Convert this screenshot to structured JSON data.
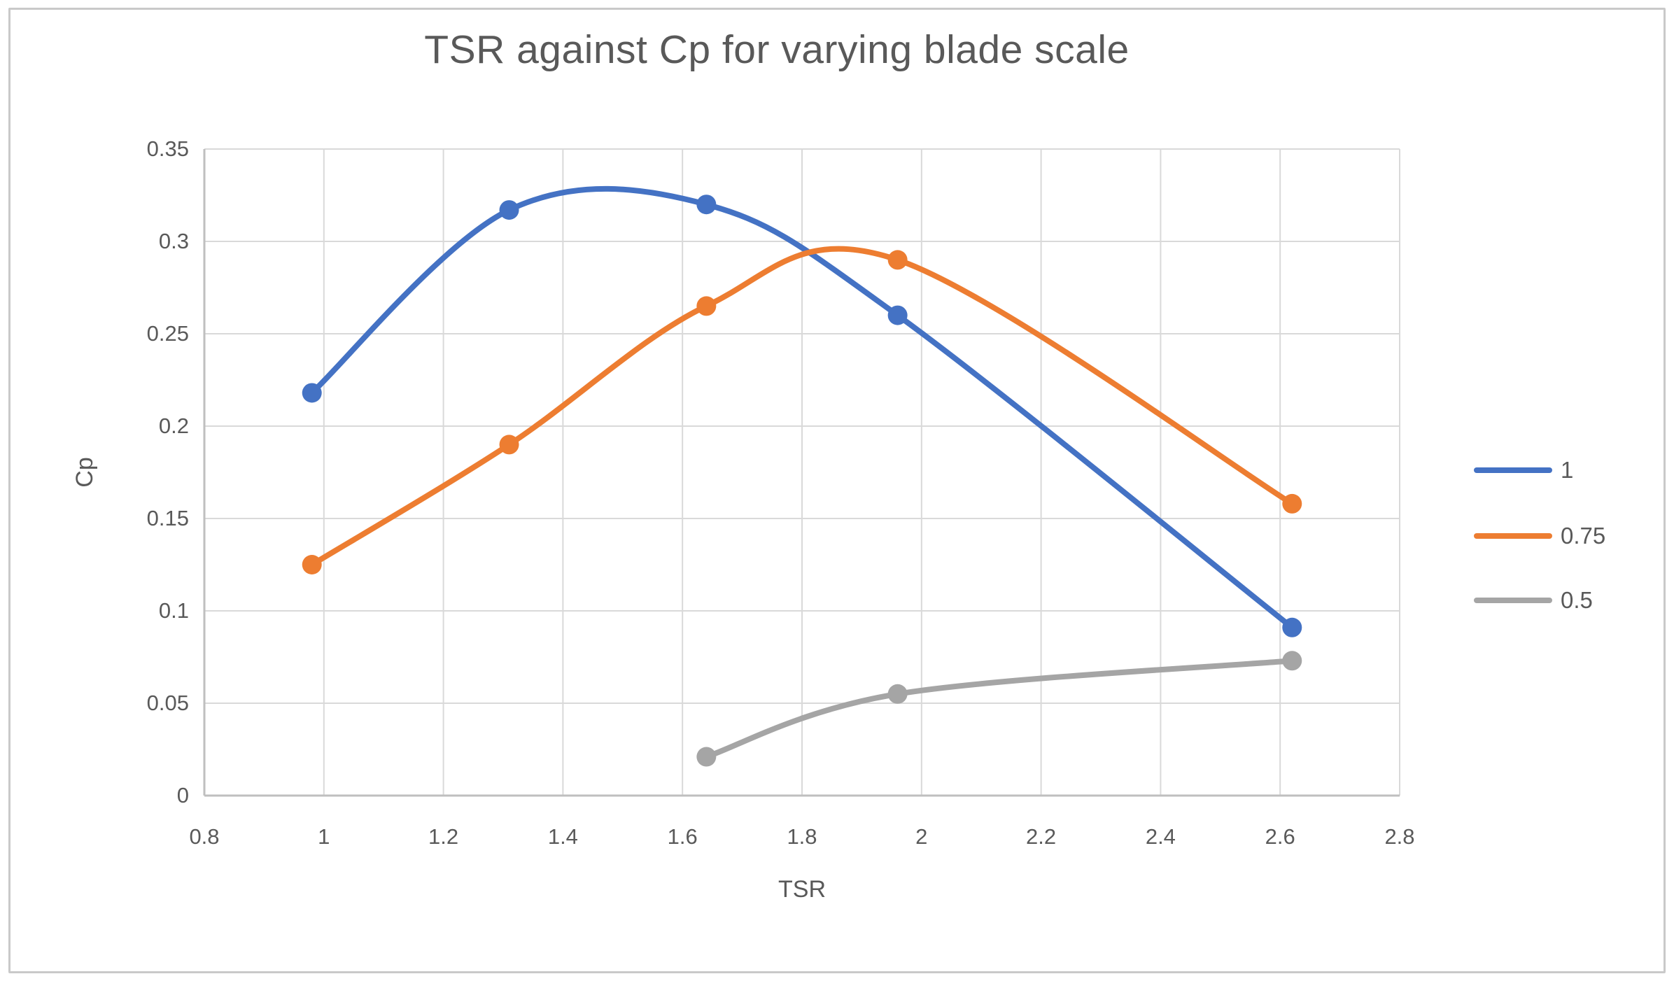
{
  "chart_data": {
    "type": "line",
    "title": "TSR against Cp for varying blade scale",
    "xlabel": "TSR",
    "ylabel": "Cp",
    "xlim": [
      0.8,
      2.8
    ],
    "ylim": [
      0,
      0.35
    ],
    "x_tick_step": 0.2,
    "y_tick_step": 0.05,
    "x_ticks": [
      "0.8",
      "1",
      "1.2",
      "1.4",
      "1.6",
      "1.8",
      "2",
      "2.2",
      "2.4",
      "2.6",
      "2.8"
    ],
    "y_ticks": [
      "0",
      "0.05",
      "0.1",
      "0.15",
      "0.2",
      "0.25",
      "0.3",
      "0.35"
    ],
    "grid": true,
    "smooth": true,
    "markers": true,
    "legend_position": "right",
    "series": [
      {
        "name": "1",
        "color": "#4472C4",
        "x": [
          0.98,
          1.31,
          1.64,
          1.96,
          2.62
        ],
        "y": [
          0.218,
          0.317,
          0.32,
          0.26,
          0.091
        ]
      },
      {
        "name": "0.75",
        "color": "#ED7D31",
        "x": [
          0.98,
          1.31,
          1.64,
          1.96,
          2.62
        ],
        "y": [
          0.125,
          0.19,
          0.265,
          0.29,
          0.158
        ]
      },
      {
        "name": "0.5",
        "color": "#A5A5A5",
        "x": [
          1.64,
          1.96,
          2.62
        ],
        "y": [
          0.021,
          0.055,
          0.073
        ]
      }
    ],
    "gridline_color": "#d9d9d9",
    "axis_line_color": "#bfbfbf",
    "text_color": "#595959",
    "background_color": "#ffffff",
    "frame_border_color": "#c9c9c9"
  }
}
